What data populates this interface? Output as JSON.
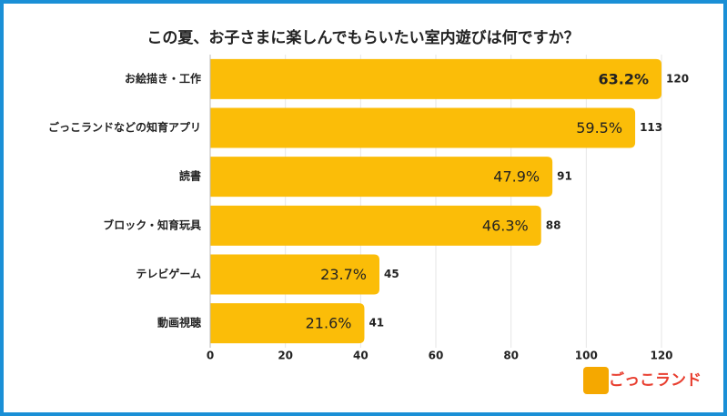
{
  "chart_data": {
    "type": "bar",
    "orientation": "horizontal",
    "title": "この夏、お子さまに楽しんでもらいたい室内遊びは何ですか？",
    "categories": [
      "お絵描き・工作",
      "ごっこランドなどの知育アプリ",
      "読書",
      "ブロック・知育玩具",
      "テレビゲーム",
      "動画視聴"
    ],
    "values": [
      120,
      113,
      91,
      88,
      45,
      41
    ],
    "percent_labels": [
      "63.2%",
      "59.5%",
      "47.9%",
      "46.3%",
      "23.7%",
      "21.6%"
    ],
    "color": "#fbbd08",
    "xlim": [
      0,
      120
    ],
    "xticks": [
      0,
      20,
      40,
      60,
      80,
      100,
      120
    ],
    "grid": true,
    "logo": "ごっこランド"
  }
}
